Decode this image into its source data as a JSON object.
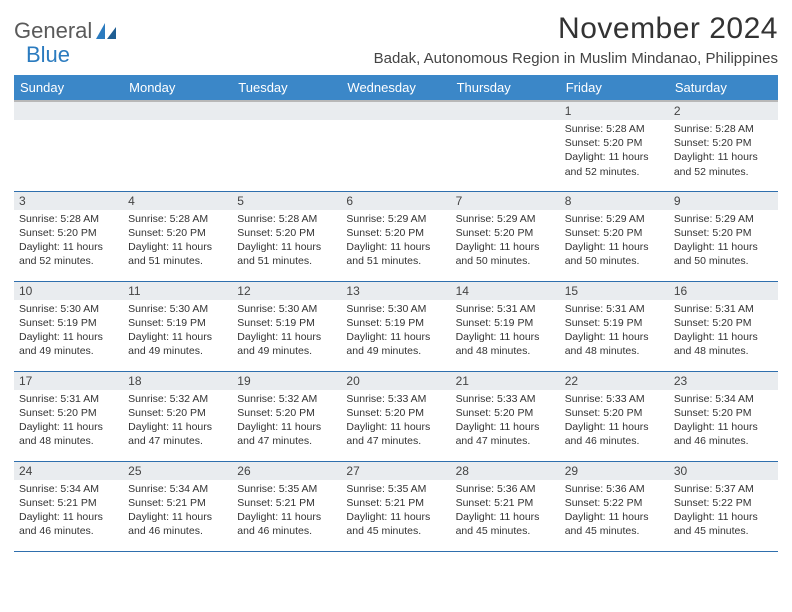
{
  "brand": {
    "part1": "General",
    "part2": "Blue"
  },
  "title": "November 2024",
  "location": "Badak, Autonomous Region in Muslim Mindanao, Philippines",
  "columns": [
    "Sunday",
    "Monday",
    "Tuesday",
    "Wednesday",
    "Thursday",
    "Friday",
    "Saturday"
  ],
  "colors": {
    "header_bg": "#3b87c8",
    "header_text": "#ffffff",
    "daynum_bg": "#e9ecef",
    "text": "#333333",
    "row_border": "#2f6fad",
    "brand_gray": "#5a5a5a",
    "brand_blue": "#2b7bbf",
    "page_bg": "#ffffff"
  },
  "typography": {
    "title_fontsize": 30,
    "location_fontsize": 15,
    "th_fontsize": 13,
    "daynum_fontsize": 12,
    "body_fontsize": 10.5
  },
  "weeks": [
    [
      {
        "n": "",
        "lines": []
      },
      {
        "n": "",
        "lines": []
      },
      {
        "n": "",
        "lines": []
      },
      {
        "n": "",
        "lines": []
      },
      {
        "n": "",
        "lines": []
      },
      {
        "n": "1",
        "lines": [
          "Sunrise: 5:28 AM",
          "Sunset: 5:20 PM",
          "Daylight: 11 hours",
          "and 52 minutes."
        ]
      },
      {
        "n": "2",
        "lines": [
          "Sunrise: 5:28 AM",
          "Sunset: 5:20 PM",
          "Daylight: 11 hours",
          "and 52 minutes."
        ]
      }
    ],
    [
      {
        "n": "3",
        "lines": [
          "Sunrise: 5:28 AM",
          "Sunset: 5:20 PM",
          "Daylight: 11 hours",
          "and 52 minutes."
        ]
      },
      {
        "n": "4",
        "lines": [
          "Sunrise: 5:28 AM",
          "Sunset: 5:20 PM",
          "Daylight: 11 hours",
          "and 51 minutes."
        ]
      },
      {
        "n": "5",
        "lines": [
          "Sunrise: 5:28 AM",
          "Sunset: 5:20 PM",
          "Daylight: 11 hours",
          "and 51 minutes."
        ]
      },
      {
        "n": "6",
        "lines": [
          "Sunrise: 5:29 AM",
          "Sunset: 5:20 PM",
          "Daylight: 11 hours",
          "and 51 minutes."
        ]
      },
      {
        "n": "7",
        "lines": [
          "Sunrise: 5:29 AM",
          "Sunset: 5:20 PM",
          "Daylight: 11 hours",
          "and 50 minutes."
        ]
      },
      {
        "n": "8",
        "lines": [
          "Sunrise: 5:29 AM",
          "Sunset: 5:20 PM",
          "Daylight: 11 hours",
          "and 50 minutes."
        ]
      },
      {
        "n": "9",
        "lines": [
          "Sunrise: 5:29 AM",
          "Sunset: 5:20 PM",
          "Daylight: 11 hours",
          "and 50 minutes."
        ]
      }
    ],
    [
      {
        "n": "10",
        "lines": [
          "Sunrise: 5:30 AM",
          "Sunset: 5:19 PM",
          "Daylight: 11 hours",
          "and 49 minutes."
        ]
      },
      {
        "n": "11",
        "lines": [
          "Sunrise: 5:30 AM",
          "Sunset: 5:19 PM",
          "Daylight: 11 hours",
          "and 49 minutes."
        ]
      },
      {
        "n": "12",
        "lines": [
          "Sunrise: 5:30 AM",
          "Sunset: 5:19 PM",
          "Daylight: 11 hours",
          "and 49 minutes."
        ]
      },
      {
        "n": "13",
        "lines": [
          "Sunrise: 5:30 AM",
          "Sunset: 5:19 PM",
          "Daylight: 11 hours",
          "and 49 minutes."
        ]
      },
      {
        "n": "14",
        "lines": [
          "Sunrise: 5:31 AM",
          "Sunset: 5:19 PM",
          "Daylight: 11 hours",
          "and 48 minutes."
        ]
      },
      {
        "n": "15",
        "lines": [
          "Sunrise: 5:31 AM",
          "Sunset: 5:19 PM",
          "Daylight: 11 hours",
          "and 48 minutes."
        ]
      },
      {
        "n": "16",
        "lines": [
          "Sunrise: 5:31 AM",
          "Sunset: 5:20 PM",
          "Daylight: 11 hours",
          "and 48 minutes."
        ]
      }
    ],
    [
      {
        "n": "17",
        "lines": [
          "Sunrise: 5:31 AM",
          "Sunset: 5:20 PM",
          "Daylight: 11 hours",
          "and 48 minutes."
        ]
      },
      {
        "n": "18",
        "lines": [
          "Sunrise: 5:32 AM",
          "Sunset: 5:20 PM",
          "Daylight: 11 hours",
          "and 47 minutes."
        ]
      },
      {
        "n": "19",
        "lines": [
          "Sunrise: 5:32 AM",
          "Sunset: 5:20 PM",
          "Daylight: 11 hours",
          "and 47 minutes."
        ]
      },
      {
        "n": "20",
        "lines": [
          "Sunrise: 5:33 AM",
          "Sunset: 5:20 PM",
          "Daylight: 11 hours",
          "and 47 minutes."
        ]
      },
      {
        "n": "21",
        "lines": [
          "Sunrise: 5:33 AM",
          "Sunset: 5:20 PM",
          "Daylight: 11 hours",
          "and 47 minutes."
        ]
      },
      {
        "n": "22",
        "lines": [
          "Sunrise: 5:33 AM",
          "Sunset: 5:20 PM",
          "Daylight: 11 hours",
          "and 46 minutes."
        ]
      },
      {
        "n": "23",
        "lines": [
          "Sunrise: 5:34 AM",
          "Sunset: 5:20 PM",
          "Daylight: 11 hours",
          "and 46 minutes."
        ]
      }
    ],
    [
      {
        "n": "24",
        "lines": [
          "Sunrise: 5:34 AM",
          "Sunset: 5:21 PM",
          "Daylight: 11 hours",
          "and 46 minutes."
        ]
      },
      {
        "n": "25",
        "lines": [
          "Sunrise: 5:34 AM",
          "Sunset: 5:21 PM",
          "Daylight: 11 hours",
          "and 46 minutes."
        ]
      },
      {
        "n": "26",
        "lines": [
          "Sunrise: 5:35 AM",
          "Sunset: 5:21 PM",
          "Daylight: 11 hours",
          "and 46 minutes."
        ]
      },
      {
        "n": "27",
        "lines": [
          "Sunrise: 5:35 AM",
          "Sunset: 5:21 PM",
          "Daylight: 11 hours",
          "and 45 minutes."
        ]
      },
      {
        "n": "28",
        "lines": [
          "Sunrise: 5:36 AM",
          "Sunset: 5:21 PM",
          "Daylight: 11 hours",
          "and 45 minutes."
        ]
      },
      {
        "n": "29",
        "lines": [
          "Sunrise: 5:36 AM",
          "Sunset: 5:22 PM",
          "Daylight: 11 hours",
          "and 45 minutes."
        ]
      },
      {
        "n": "30",
        "lines": [
          "Sunrise: 5:37 AM",
          "Sunset: 5:22 PM",
          "Daylight: 11 hours",
          "and 45 minutes."
        ]
      }
    ]
  ]
}
